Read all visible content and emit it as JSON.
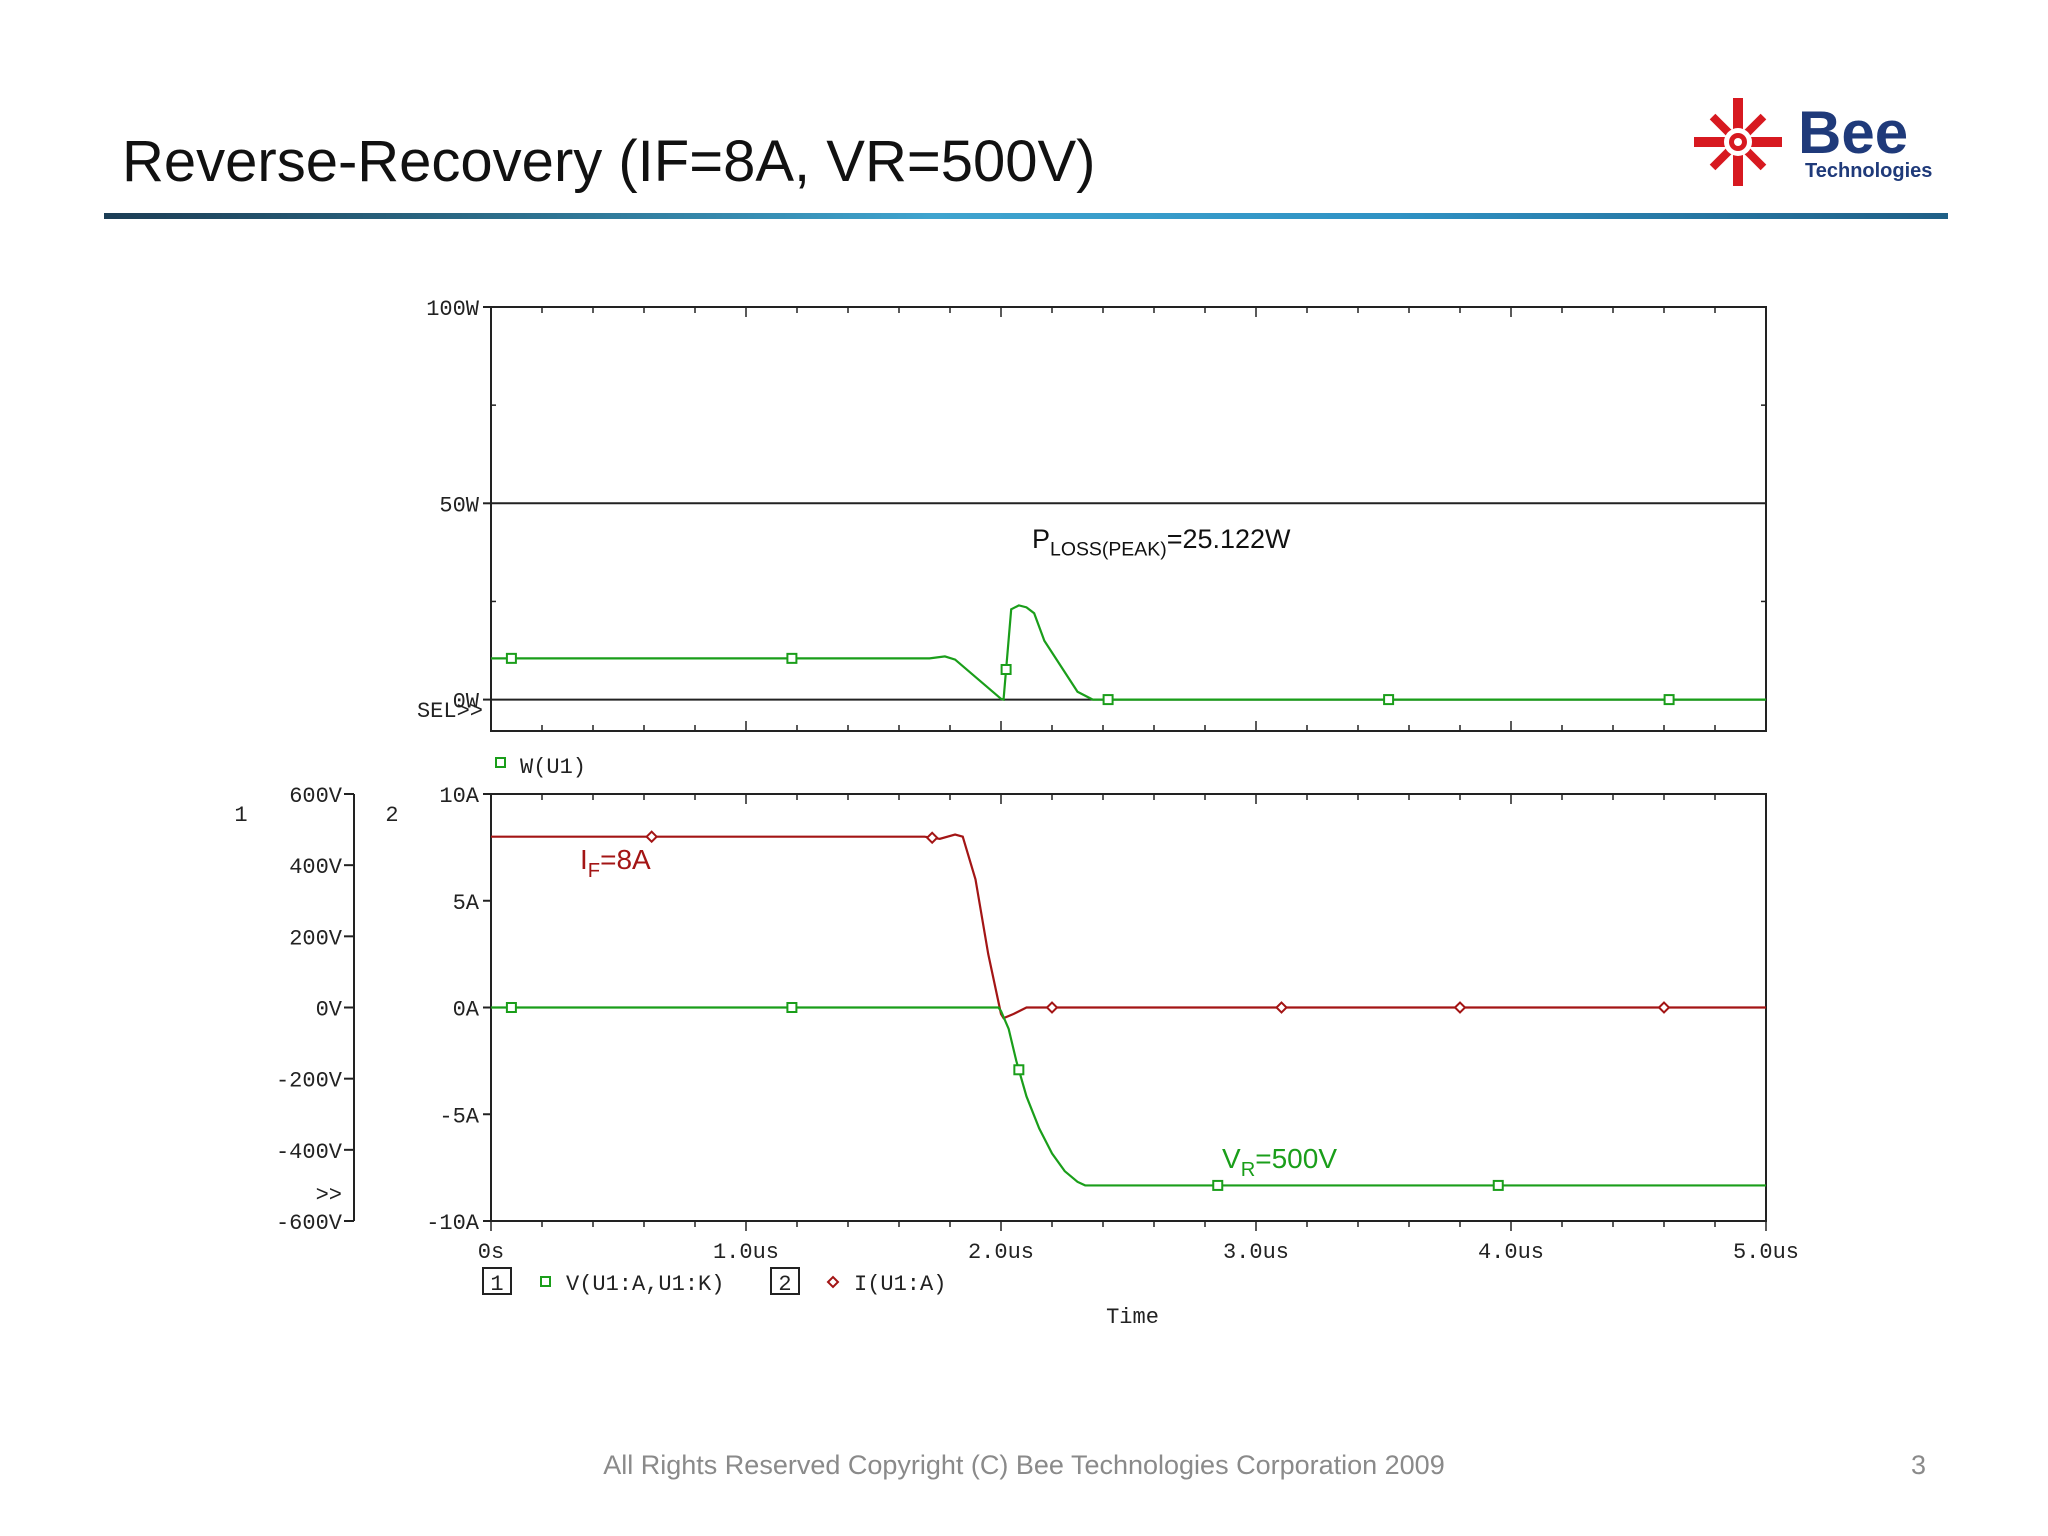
{
  "slide": {
    "title": "Reverse-Recovery (IF=8A, VR=500V)",
    "footer": "All Rights Reserved Copyright (C) Bee Technologies Corporation 2009",
    "page_number": "3"
  },
  "logo": {
    "brand": "Bee",
    "tagline": "Technologies",
    "icon": "sunburst-logo-icon",
    "colors": {
      "mark": "#d71920",
      "text": "#1f3a7a"
    }
  },
  "colors": {
    "green": "#1a9e1a",
    "red": "#a31515",
    "axis": "#222222"
  },
  "chart_data": [
    {
      "type": "line",
      "name": "power-plot",
      "xlim": [
        0,
        5
      ],
      "ylim": [
        -8,
        100
      ],
      "yticks": [
        {
          "value": 100,
          "label": "100W"
        },
        {
          "value": 50,
          "label": "50W"
        },
        {
          "value": 0,
          "label": "0W"
        }
      ],
      "sel_label": "SEL>>",
      "grid_lines": [
        0,
        50
      ],
      "legend": {
        "marker": "□",
        "label": "W(U1)"
      },
      "annotation": {
        "main": "P",
        "sub": "LOSS(PEAK)",
        "rest": "=25.122W"
      },
      "series": [
        {
          "label": "W(U1)",
          "x": [
            0,
            1.3,
            1.72,
            1.78,
            1.82,
            2.0,
            2.01,
            2.04,
            2.07,
            2.1,
            2.13,
            2.17,
            2.3,
            2.36,
            2.4,
            3.0,
            4.0,
            5.0
          ],
          "y": [
            10.5,
            10.5,
            10.5,
            11,
            10.2,
            0.2,
            0,
            23,
            24,
            23.5,
            22,
            15,
            2,
            0,
            0,
            0,
            0,
            0
          ],
          "markers_x": [
            0.08,
            1.18,
            2.02,
            2.42,
            3.52,
            4.62
          ]
        }
      ]
    },
    {
      "type": "line",
      "name": "voltage-current-plot",
      "xlim": [
        0,
        5
      ],
      "y1": {
        "axis_number": "1",
        "ylim": [
          -600,
          600
        ],
        "ticks": [
          "600V",
          "400V",
          "200V",
          "0V",
          "-200V",
          "-400V",
          "-600V"
        ],
        "tick_values": [
          600,
          400,
          200,
          0,
          -200,
          -400,
          -600
        ],
        "sel_label": ">>"
      },
      "y2": {
        "axis_number": "2",
        "ylim": [
          -10,
          10
        ],
        "ticks": [
          "10A",
          "5A",
          "0A",
          "-5A",
          "-10A"
        ],
        "tick_values": [
          10,
          5,
          0,
          -5,
          -10
        ]
      },
      "xticks": [
        "0s",
        "1.0us",
        "2.0us",
        "3.0us",
        "4.0us",
        "5.0us"
      ],
      "xtick_values": [
        0,
        1,
        2,
        3,
        4,
        5
      ],
      "xlabel": "Time",
      "legend": [
        {
          "box": "1",
          "marker": "□",
          "label": "V(U1:A,U1:K)"
        },
        {
          "box": "2",
          "marker": "◇",
          "label": "I(U1:A)"
        }
      ],
      "annotations": [
        {
          "main": "I",
          "sub": "F",
          "rest": "=8A"
        },
        {
          "main": "V",
          "sub": "R",
          "rest": "=500V"
        }
      ],
      "series": [
        {
          "label": "V(U1:A,U1:K)",
          "axis": "y1",
          "x": [
            0,
            1.0,
            1.99,
            2.0,
            2.03,
            2.06,
            2.1,
            2.15,
            2.2,
            2.25,
            2.3,
            2.33,
            3.0,
            4.0,
            5.0
          ],
          "y": [
            0,
            0,
            0,
            -10,
            -60,
            -150,
            -250,
            -340,
            -410,
            -460,
            -490,
            -500,
            -500,
            -500,
            -500
          ],
          "markers_x": [
            0.08,
            1.18,
            2.07,
            2.85,
            3.95
          ]
        },
        {
          "label": "I(U1:A)",
          "axis": "y2",
          "x": [
            0,
            1.7,
            1.76,
            1.82,
            1.85,
            1.9,
            1.95,
            2.0,
            2.01,
            2.05,
            2.1,
            2.6,
            3.0,
            4.0,
            5.0
          ],
          "y": [
            8,
            8,
            7.9,
            8.1,
            8,
            6,
            2.5,
            -0.3,
            -0.5,
            -0.3,
            0,
            0,
            0,
            0,
            0
          ],
          "markers_x": [
            0.63,
            1.73,
            2.2,
            3.1,
            3.8,
            4.6
          ]
        }
      ]
    }
  ]
}
